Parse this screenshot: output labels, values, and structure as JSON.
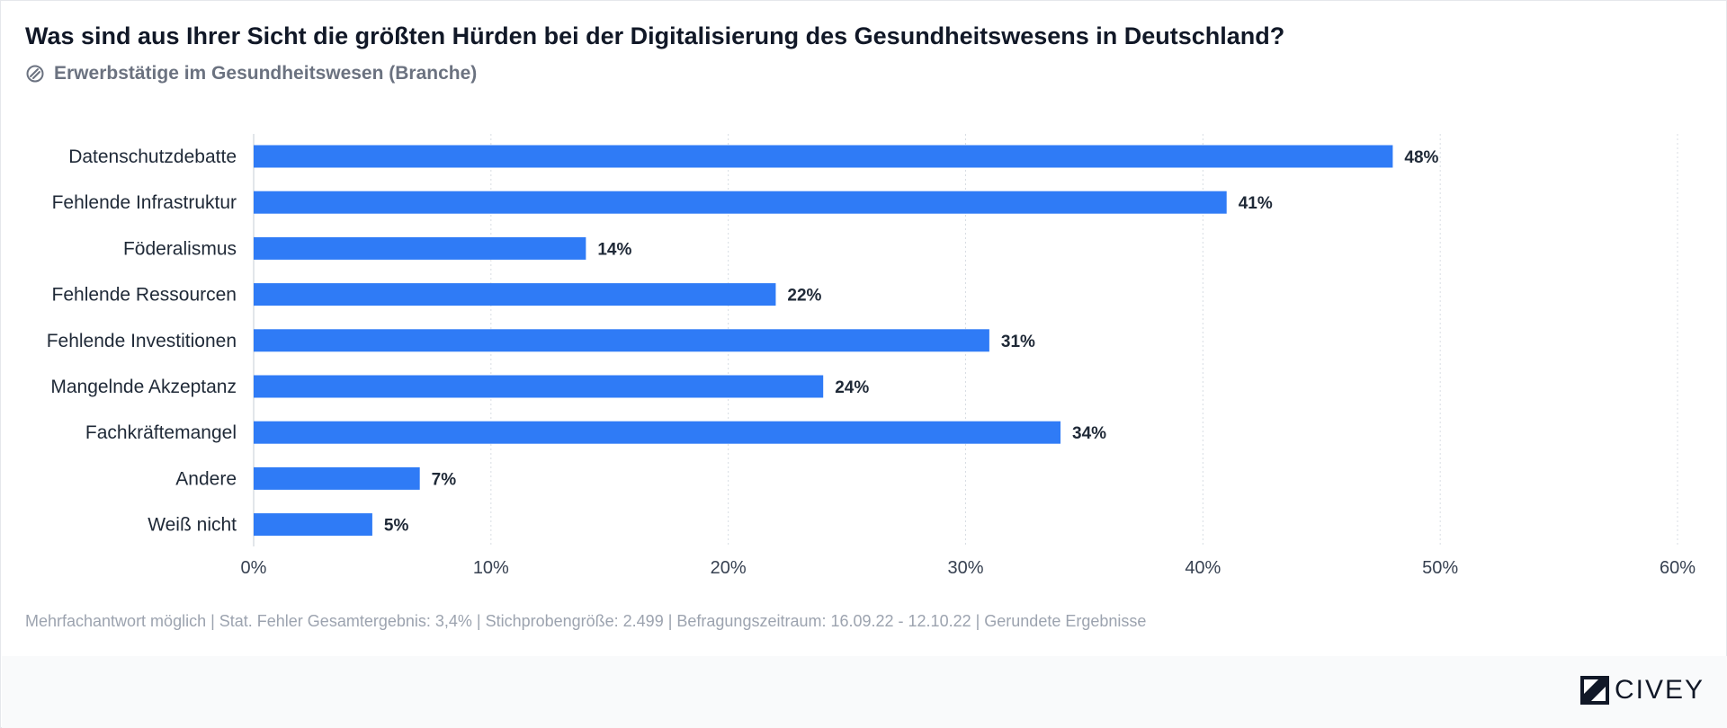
{
  "header": {
    "title": "Was sind aus Ihrer Sicht die größten Hürden bei der Digitalisierung des Gesundheitswesens in Deutschland?",
    "subtitle": "Erwerbstätige im Gesundheitswesen (Branche)",
    "subtitle_icon": "segment-icon"
  },
  "footnote": "Mehrfachantwort möglich | Stat. Fehler Gesamtergebnis: 3,4% | Stichprobengröße: 2.499 | Befragungszeitraum: 16.09.22 - 12.10.22 | Gerundete Ergebnisse",
  "brand": {
    "name": "CIVEY",
    "logo_icon": "civey-logo-icon"
  },
  "colors": {
    "bar": "#2f7bf6",
    "grid": "#d8dde3",
    "tick_text": "#374151",
    "label_text": "#1f2937"
  },
  "chart_data": {
    "type": "bar",
    "orientation": "horizontal",
    "categories": [
      "Datenschutzdebatte",
      "Fehlende Infrastruktur",
      "Föderalismus",
      "Fehlende Ressourcen",
      "Fehlende Investitionen",
      "Mangelnde Akzeptanz",
      "Fachkräftemangel",
      "Andere",
      "Weiß nicht"
    ],
    "values": [
      48,
      41,
      14,
      22,
      31,
      24,
      34,
      7,
      5
    ],
    "value_labels": [
      "48%",
      "41%",
      "14%",
      "22%",
      "31%",
      "24%",
      "34%",
      "7%",
      "5%"
    ],
    "xlim": [
      0,
      60
    ],
    "x_ticks": [
      0,
      10,
      20,
      30,
      40,
      50,
      60
    ],
    "x_tick_labels": [
      "0%",
      "10%",
      "20%",
      "30%",
      "40%",
      "50%",
      "60%"
    ],
    "grid": "vertical-dotted",
    "legend": "none"
  }
}
